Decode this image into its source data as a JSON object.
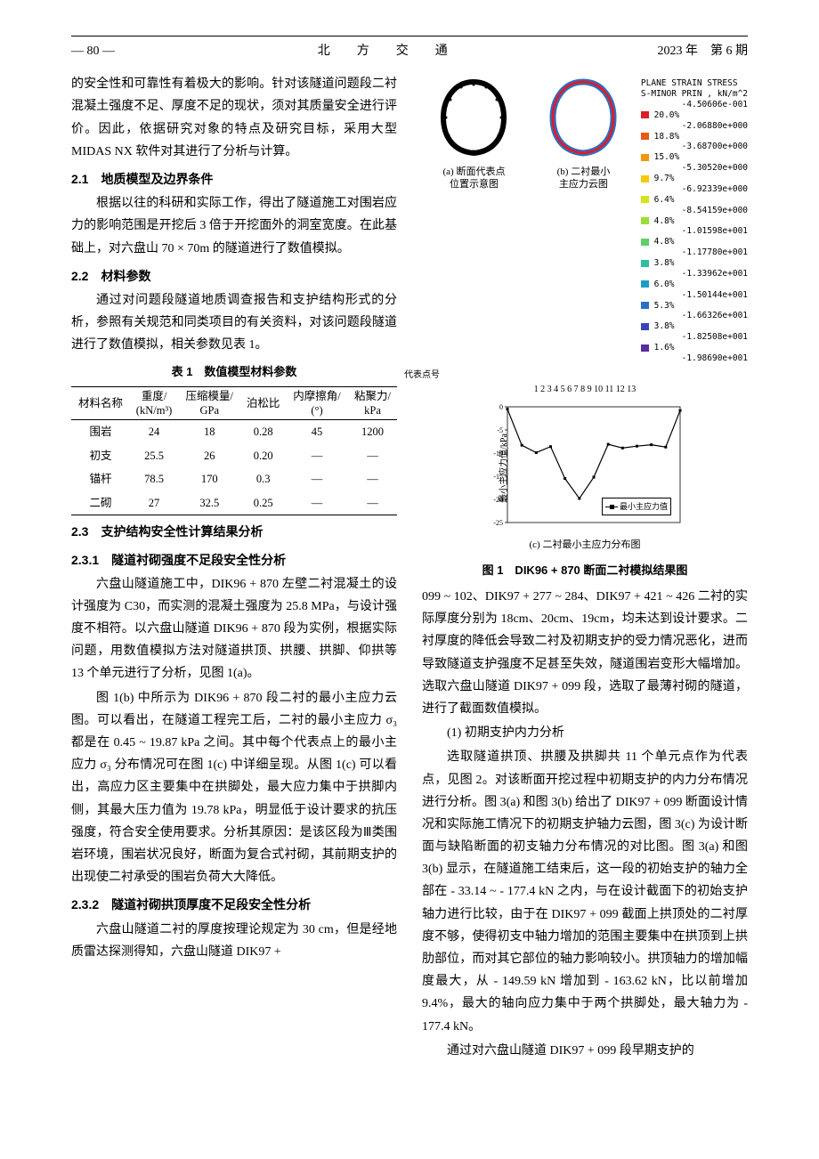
{
  "header": {
    "page_label": "— 80 —",
    "journal": "北　方　交　通",
    "issue": "2023 年　第 6 期"
  },
  "col1": {
    "p1": "的安全性和可靠性有着极大的影响。针对该隧道问题段二衬混凝土强度不足、厚度不足的现状，须对其质量安全进行评价。因此，依据研究对象的特点及研究目标，采用大型 MIDAS NX 软件对其进行了分析与计算。",
    "s21_num": "2.1",
    "s21_title": "地质模型及边界条件",
    "p21": "根据以往的科研和实际工作，得出了隧道施工对围岩应力的影响范围是开挖后 3 倍于开挖面外的洞室宽度。在此基础上，对六盘山 70 × 70m 的隧道进行了数值模拟。",
    "s22_num": "2.2",
    "s22_title": "材料参数",
    "p22": "通过对问题段隧道地质调查报告和支护结构形式的分析，参照有关规范和同类项目的有关资料，对该问题段隧道进行了数值模拟，相关参数见表 1。",
    "s23_num": "2.3",
    "s23_title": "支护结构安全性计算结果分析",
    "s231_num": "2.3.1",
    "s231_title": "隧道衬砌强度不足段安全性分析",
    "p231a": "六盘山隧道施工中，DIK96 + 870 左壁二衬混凝土的设计强度为 C30，而实测的混凝土强度为 25.8 MPa，与设计强度不相符。以六盘山隧道 DIK96 + 870 段为实例，根据实际问题，用数值模拟方法对隧道拱顶、拱腰、拱脚、仰拱等 13 个单元进行了分析，见图 1(a)。",
    "p231b": "图 1(b) 中所示为 DIK96 + 870 段二衬的最小主应力云图。可以看出，在隧道工程完工后，二衬的最小主应力 σ₃ 都是在 0.45 ~ 19.87 kPa 之间。其中每个代表点上的最小主应力 σ₃ 分布情况可在图 1(c) 中详细呈现。从图 1(c) 可以看出，高应力区主要集中在拱脚处，最大应力集中于拱脚内侧，其最大压力值为 19.78 kPa，明显低于设计要求的抗压强度，符合安全使用要求。分析其原因：是该区段为Ⅲ类围岩环境，围岩状况良好，断面为复合式衬砌，其前期支护的出现使二衬承受的围岩负荷大大降低。",
    "s232_num": "2.3.2",
    "s232_title": "隧道衬砌拱顶厚度不足段安全性分析",
    "p232": "六盘山隧道二衬的厚度按理论规定为 30 cm，但是经地质雷达探测得知，六盘山隧道 DIK97 +"
  },
  "table1": {
    "caption": "表 1　数值模型材料参数",
    "columns": [
      "材料名称",
      "重度/\n(kN/m³)",
      "压缩模量/\nGPa",
      "泊松比",
      "内摩擦角/\n(°)",
      "粘聚力/\nkPa"
    ],
    "rows": [
      [
        "围岩",
        "24",
        "18",
        "0.28",
        "45",
        "1200"
      ],
      [
        "初支",
        "25.5",
        "26",
        "0.20",
        "—",
        "—"
      ],
      [
        "锚杆",
        "78.5",
        "170",
        "0.3",
        "—",
        "—"
      ],
      [
        "二砌",
        "27",
        "32.5",
        "0.25",
        "—",
        "—"
      ]
    ]
  },
  "figure1": {
    "caption": "图 1　DIK96 + 870 断面二衬模拟结果图",
    "sub_a": "(a) 断面代表点\n位置示意图",
    "sub_b": "(b) 二衬最小\n主应力云图",
    "sub_c": "(c) 二衬最小主应力分布图",
    "legend_title": "PLANE STRAIN STRESS\nS-MINOR PRIN , kN/m^2",
    "legend_items": [
      {
        "pct": "",
        "val": "-4.50606e-001"
      },
      {
        "pct": "20.0%",
        "val": ""
      },
      {
        "pct": "",
        "val": "-2.06880e+000"
      },
      {
        "pct": "18.8%",
        "val": ""
      },
      {
        "pct": "",
        "val": "-3.68700e+000"
      },
      {
        "pct": "15.0%",
        "val": ""
      },
      {
        "pct": "",
        "val": "-5.30520e+000"
      },
      {
        "pct": "9.7%",
        "val": ""
      },
      {
        "pct": "",
        "val": "-6.92339e+000"
      },
      {
        "pct": "6.4%",
        "val": ""
      },
      {
        "pct": "",
        "val": "-8.54159e+000"
      },
      {
        "pct": "4.8%",
        "val": ""
      },
      {
        "pct": "",
        "val": "-1.01598e+001"
      },
      {
        "pct": "4.8%",
        "val": ""
      },
      {
        "pct": "",
        "val": "-1.17780e+001"
      },
      {
        "pct": "3.8%",
        "val": ""
      },
      {
        "pct": "",
        "val": "-1.33962e+001"
      },
      {
        "pct": "6.0%",
        "val": ""
      },
      {
        "pct": "",
        "val": "-1.50144e+001"
      },
      {
        "pct": "5.3%",
        "val": ""
      },
      {
        "pct": "",
        "val": "-1.66326e+001"
      },
      {
        "pct": "3.8%",
        "val": ""
      },
      {
        "pct": "",
        "val": "-1.82508e+001"
      },
      {
        "pct": "1.6%",
        "val": ""
      },
      {
        "pct": "",
        "val": "-1.98690e+001"
      }
    ],
    "legend_colors": [
      "#d91f2a",
      "#e65a1a",
      "#f29410",
      "#f5c905",
      "#d7e218",
      "#9ade36",
      "#5fcf66",
      "#2ebfa1",
      "#1a9ec4",
      "#2a6fc5",
      "#3a45b5",
      "#5a2aa0"
    ],
    "chart_c": {
      "x_label": "代表点号",
      "y_label": "最小主应力值/kPa",
      "x_ticks": [
        "1",
        "2",
        "3",
        "4",
        "5",
        "6",
        "7",
        "8",
        "9",
        "10",
        "11",
        "12",
        "13"
      ],
      "y_ticks": [
        "0",
        "-5",
        "-10",
        "-15",
        "-20",
        "-25"
      ],
      "y_min": -25,
      "y_max": 0,
      "series_name": "最小主应力值",
      "values": [
        -0.5,
        -8.3,
        -9.9,
        -8.6,
        -15.5,
        -19.8,
        -15.2,
        -8.1,
        -8.9,
        -8.5,
        -8.2,
        -8.7,
        -0.8
      ],
      "line_color": "#000000",
      "marker_size": 3,
      "background": "#ffffff",
      "grid_color": "#999999"
    }
  },
  "col2": {
    "p1": "099 ~ 102、DIK97 + 277 ~ 284、DIK97 + 421 ~ 426 二衬的实际厚度分别为 18cm、20cm、19cm，均未达到设计要求。二衬厚度的降低会导致二衬及初期支护的受力情况恶化，进而导致隧道支护强度不足甚至失效，隧道围岩变形大幅增加。选取六盘山隧道 DIK97 + 099 段，选取了最薄衬砌的隧道，进行了截面数值模拟。",
    "p2_label": "(1) 初期支护内力分析",
    "p2": "选取隧道拱顶、拱腰及拱脚共 11 个单元点作为代表点，见图 2。对该断面开挖过程中初期支护的内力分布情况进行分析。图 3(a) 和图 3(b) 给出了 DIK97 + 099 断面设计情况和实际施工情况下的初期支护轴力云图，图 3(c) 为设计断面与缺陷断面的初支轴力分布情况的对比图。图 3(a) 和图 3(b) 显示，在隧道施工结束后，这一段的初始支护的轴力全部在 - 33.14 ~ - 177.4 kN 之内，与在设计截面下的初始支护轴力进行比较，由于在 DIK97 + 099 截面上拱顶处的二衬厚度不够，使得初支中轴力增加的范围主要集中在拱顶到上拱肋部位，而对其它部位的轴力影响较小。拱顶轴力的增加幅度最大，从 - 149.59 kN 增加到 - 163.62 kN，比以前增加 9.4%，最大的轴向应力集中于两个拱脚处，最大轴力为 - 177.4 kN。",
    "p3": "通过对六盘山隧道 DIK97 + 099 段早期支护的"
  }
}
